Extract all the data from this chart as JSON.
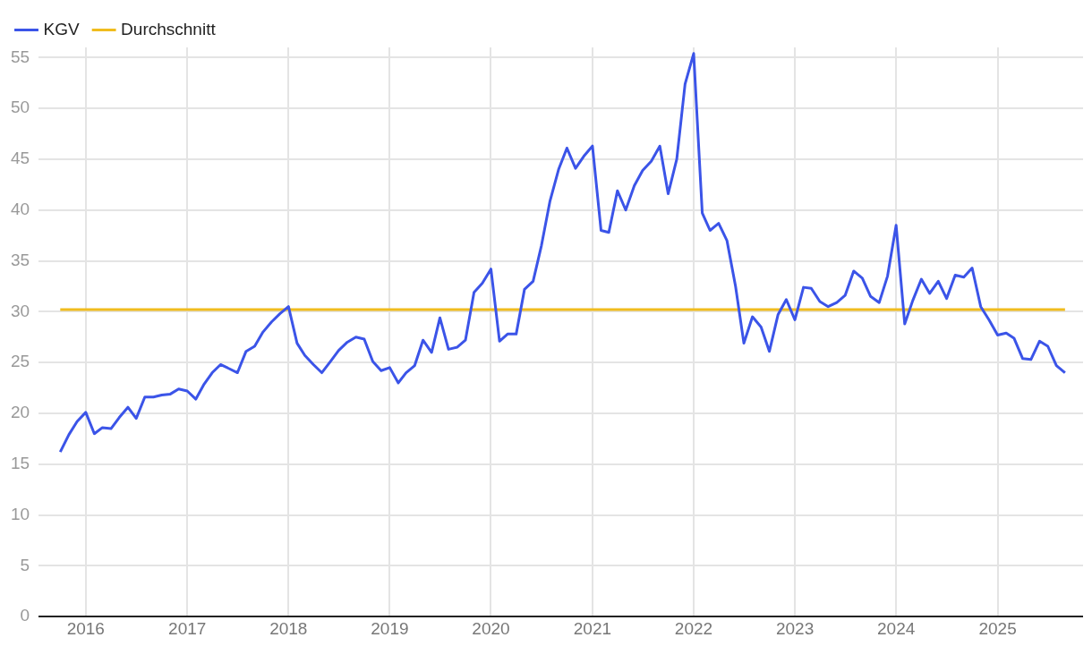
{
  "chart_data": {
    "type": "line",
    "xlim": [
      "2015-07-15",
      "2025-11-05"
    ],
    "xticks": [
      "2016",
      "2017",
      "2018",
      "2019",
      "2020",
      "2021",
      "2022",
      "2023",
      "2024",
      "2025"
    ],
    "ylim": [
      0,
      56
    ],
    "yticks": [
      0,
      5,
      10,
      15,
      20,
      25,
      30,
      35,
      40,
      45,
      50,
      55
    ],
    "grid": true,
    "legend": "top left",
    "marker": "none",
    "line_style": "solid",
    "series": [
      {
        "name": "KGV",
        "color": "#3b54e8",
        "x": [
          "2015-10",
          "2015-11",
          "2015-12",
          "2016-01",
          "2016-02",
          "2016-03",
          "2016-04",
          "2016-05",
          "2016-06",
          "2016-07",
          "2016-08",
          "2016-09",
          "2016-10",
          "2016-11",
          "2016-12",
          "2017-01",
          "2017-02",
          "2017-03",
          "2017-04",
          "2017-05",
          "2017-06",
          "2017-07",
          "2017-08",
          "2017-09",
          "2017-10",
          "2017-11",
          "2017-12",
          "2018-01",
          "2018-02",
          "2018-03",
          "2018-04",
          "2018-05",
          "2018-06",
          "2018-07",
          "2018-08",
          "2018-09",
          "2018-10",
          "2018-11",
          "2018-12",
          "2019-01",
          "2019-02",
          "2019-03",
          "2019-04",
          "2019-05",
          "2019-06",
          "2019-07",
          "2019-08",
          "2019-09",
          "2019-10",
          "2019-11",
          "2019-12",
          "2020-01",
          "2020-02",
          "2020-03",
          "2020-04",
          "2020-05",
          "2020-06",
          "2020-07",
          "2020-08",
          "2020-09",
          "2020-10",
          "2020-11",
          "2020-12",
          "2021-01",
          "2021-02",
          "2021-03",
          "2021-04",
          "2021-05",
          "2021-06",
          "2021-07",
          "2021-08",
          "2021-09",
          "2021-10",
          "2021-11",
          "2021-12",
          "2022-01",
          "2022-02",
          "2022-03",
          "2022-04",
          "2022-05",
          "2022-06",
          "2022-07",
          "2022-08",
          "2022-09",
          "2022-10",
          "2022-11",
          "2022-12",
          "2023-01",
          "2023-02",
          "2023-03",
          "2023-04",
          "2023-05",
          "2023-06",
          "2023-07",
          "2023-08",
          "2023-09",
          "2023-10",
          "2023-11",
          "2023-12",
          "2024-01",
          "2024-02",
          "2024-03",
          "2024-04",
          "2024-05",
          "2024-06",
          "2024-07",
          "2024-08",
          "2024-09",
          "2024-10",
          "2024-11",
          "2024-12",
          "2025-01",
          "2025-02",
          "2025-03",
          "2025-04",
          "2025-05",
          "2025-06",
          "2025-07",
          "2025-08",
          "2025-09"
        ],
        "values": [
          16.2,
          17.9,
          19.2,
          20.1,
          18.0,
          18.6,
          18.5,
          19.6,
          20.6,
          19.5,
          21.6,
          21.6,
          21.8,
          21.9,
          22.4,
          22.2,
          21.4,
          22.8,
          24.0,
          24.8,
          24.4,
          24.0,
          26.1,
          26.6,
          28.0,
          29.0,
          29.8,
          30.5,
          26.9,
          25.7,
          24.8,
          24.0,
          25.1,
          26.2,
          27.0,
          27.5,
          27.3,
          25.1,
          24.2,
          24.5,
          23.0,
          24.0,
          24.7,
          27.2,
          26.0,
          29.4,
          26.3,
          26.5,
          27.2,
          31.9,
          32.8,
          34.2,
          27.1,
          27.8,
          27.8,
          32.2,
          33.0,
          36.5,
          40.9,
          44.0,
          46.1,
          44.1,
          45.3,
          46.3,
          38.0,
          37.8,
          41.9,
          40.0,
          42.4,
          43.9,
          44.8,
          46.3,
          41.6,
          45.0,
          52.4,
          55.4,
          39.7,
          38.0,
          38.7,
          37.0,
          32.5,
          26.9,
          29.5,
          28.5,
          26.1,
          29.7,
          31.2,
          29.2,
          32.4,
          32.3,
          31.0,
          30.5,
          30.9,
          31.6,
          34.0,
          33.3,
          31.5,
          30.9,
          33.5,
          38.5,
          28.8,
          31.1,
          33.2,
          31.8,
          33.0,
          31.3,
          33.6,
          33.4,
          34.3,
          30.5,
          29.2,
          27.7,
          27.9,
          27.4,
          25.4,
          25.3,
          27.1,
          26.6,
          24.7,
          24.0
        ]
      },
      {
        "name": "Durchschnitt",
        "color": "#f0bc1e",
        "x": [
          "2015-10",
          "2025-09"
        ],
        "values": [
          30.2,
          30.2
        ]
      }
    ]
  }
}
